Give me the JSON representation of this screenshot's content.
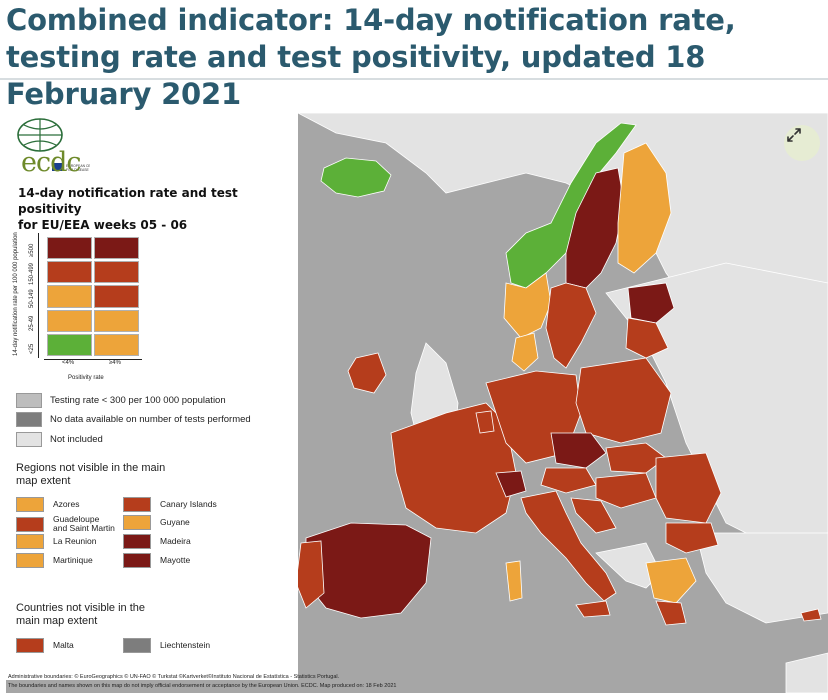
{
  "heading": "Combined indicator: 14-day notification rate, testing rate and test positivity, updated 18 February 2021",
  "logo_text": "ecdc",
  "legend": {
    "title_line1": "14-day notification rate and test positivity",
    "title_line2": "for EU/EEA weeks 05 - 06",
    "y_axis_label": "14-day notification rate per 100 000 population",
    "row_labels": [
      "<25",
      "25-49",
      "50-149",
      "150-499",
      "≥500"
    ],
    "col_labels": [
      "<4%",
      "≥4%"
    ],
    "x_axis_label": "Positivity rate",
    "matrix_colors": [
      [
        "#7b1916",
        "#7b1916"
      ],
      [
        "#b53d1c",
        "#b53d1c"
      ],
      [
        "#eda43a",
        "#b53d1c"
      ],
      [
        "#eda43a",
        "#eda43a"
      ],
      [
        "#5cb038",
        "#eda43a"
      ]
    ],
    "grey_items": [
      {
        "label": "Testing rate < 300 per 100 000 population",
        "color": "#bdbdbd"
      },
      {
        "label": "No data available on number of tests performed",
        "color": "#7d7d7d"
      },
      {
        "label": "Not included",
        "color": "#e3e3e3"
      }
    ],
    "regions_heading": "Regions not visible in the main map extent",
    "regions": [
      {
        "label": "Azores",
        "color": "#eda43a"
      },
      {
        "label": "Canary Islands",
        "color": "#b53d1c"
      },
      {
        "label": "Guadeloupe and Saint Martin",
        "color": "#b53d1c"
      },
      {
        "label": "Guyane",
        "color": "#eda43a"
      },
      {
        "label": "La Reunion",
        "color": "#eda43a"
      },
      {
        "label": "Madeira",
        "color": "#7b1916"
      },
      {
        "label": "Martinique",
        "color": "#eda43a"
      },
      {
        "label": "Mayotte",
        "color": "#7b1916"
      }
    ],
    "countries_heading": "Countries not visible in the main map extent",
    "countries": [
      {
        "label": "Malta",
        "color": "#b53d1c"
      },
      {
        "label": "Liechtenstein",
        "color": "#7d7d7d"
      }
    ]
  },
  "footnote_line1": "Administrative boundaries: © EuroGeographics © UN-FAO © Turkstat ©Kartverket©Instituto Nacional de Estatística - Statistics Portugal.",
  "footnote_line2": "The boundaries and names shown on this map do not imply official endorsement or acceptance by the European Union. ECDC. Map produced on: 18 Feb 2021",
  "colors": {
    "dark_red": "#7b1916",
    "red": "#b53d1c",
    "orange": "#eda43a",
    "green": "#5cb038",
    "grey": "#bdbdbd",
    "dark_grey": "#7d7d7d",
    "light_grey": "#e3e3e3",
    "sea": "#a6a6a6",
    "heading": "#2b5a6e"
  },
  "icons": {
    "expand": "expand-arrows-icon",
    "logo": "globe-logo-icon"
  }
}
